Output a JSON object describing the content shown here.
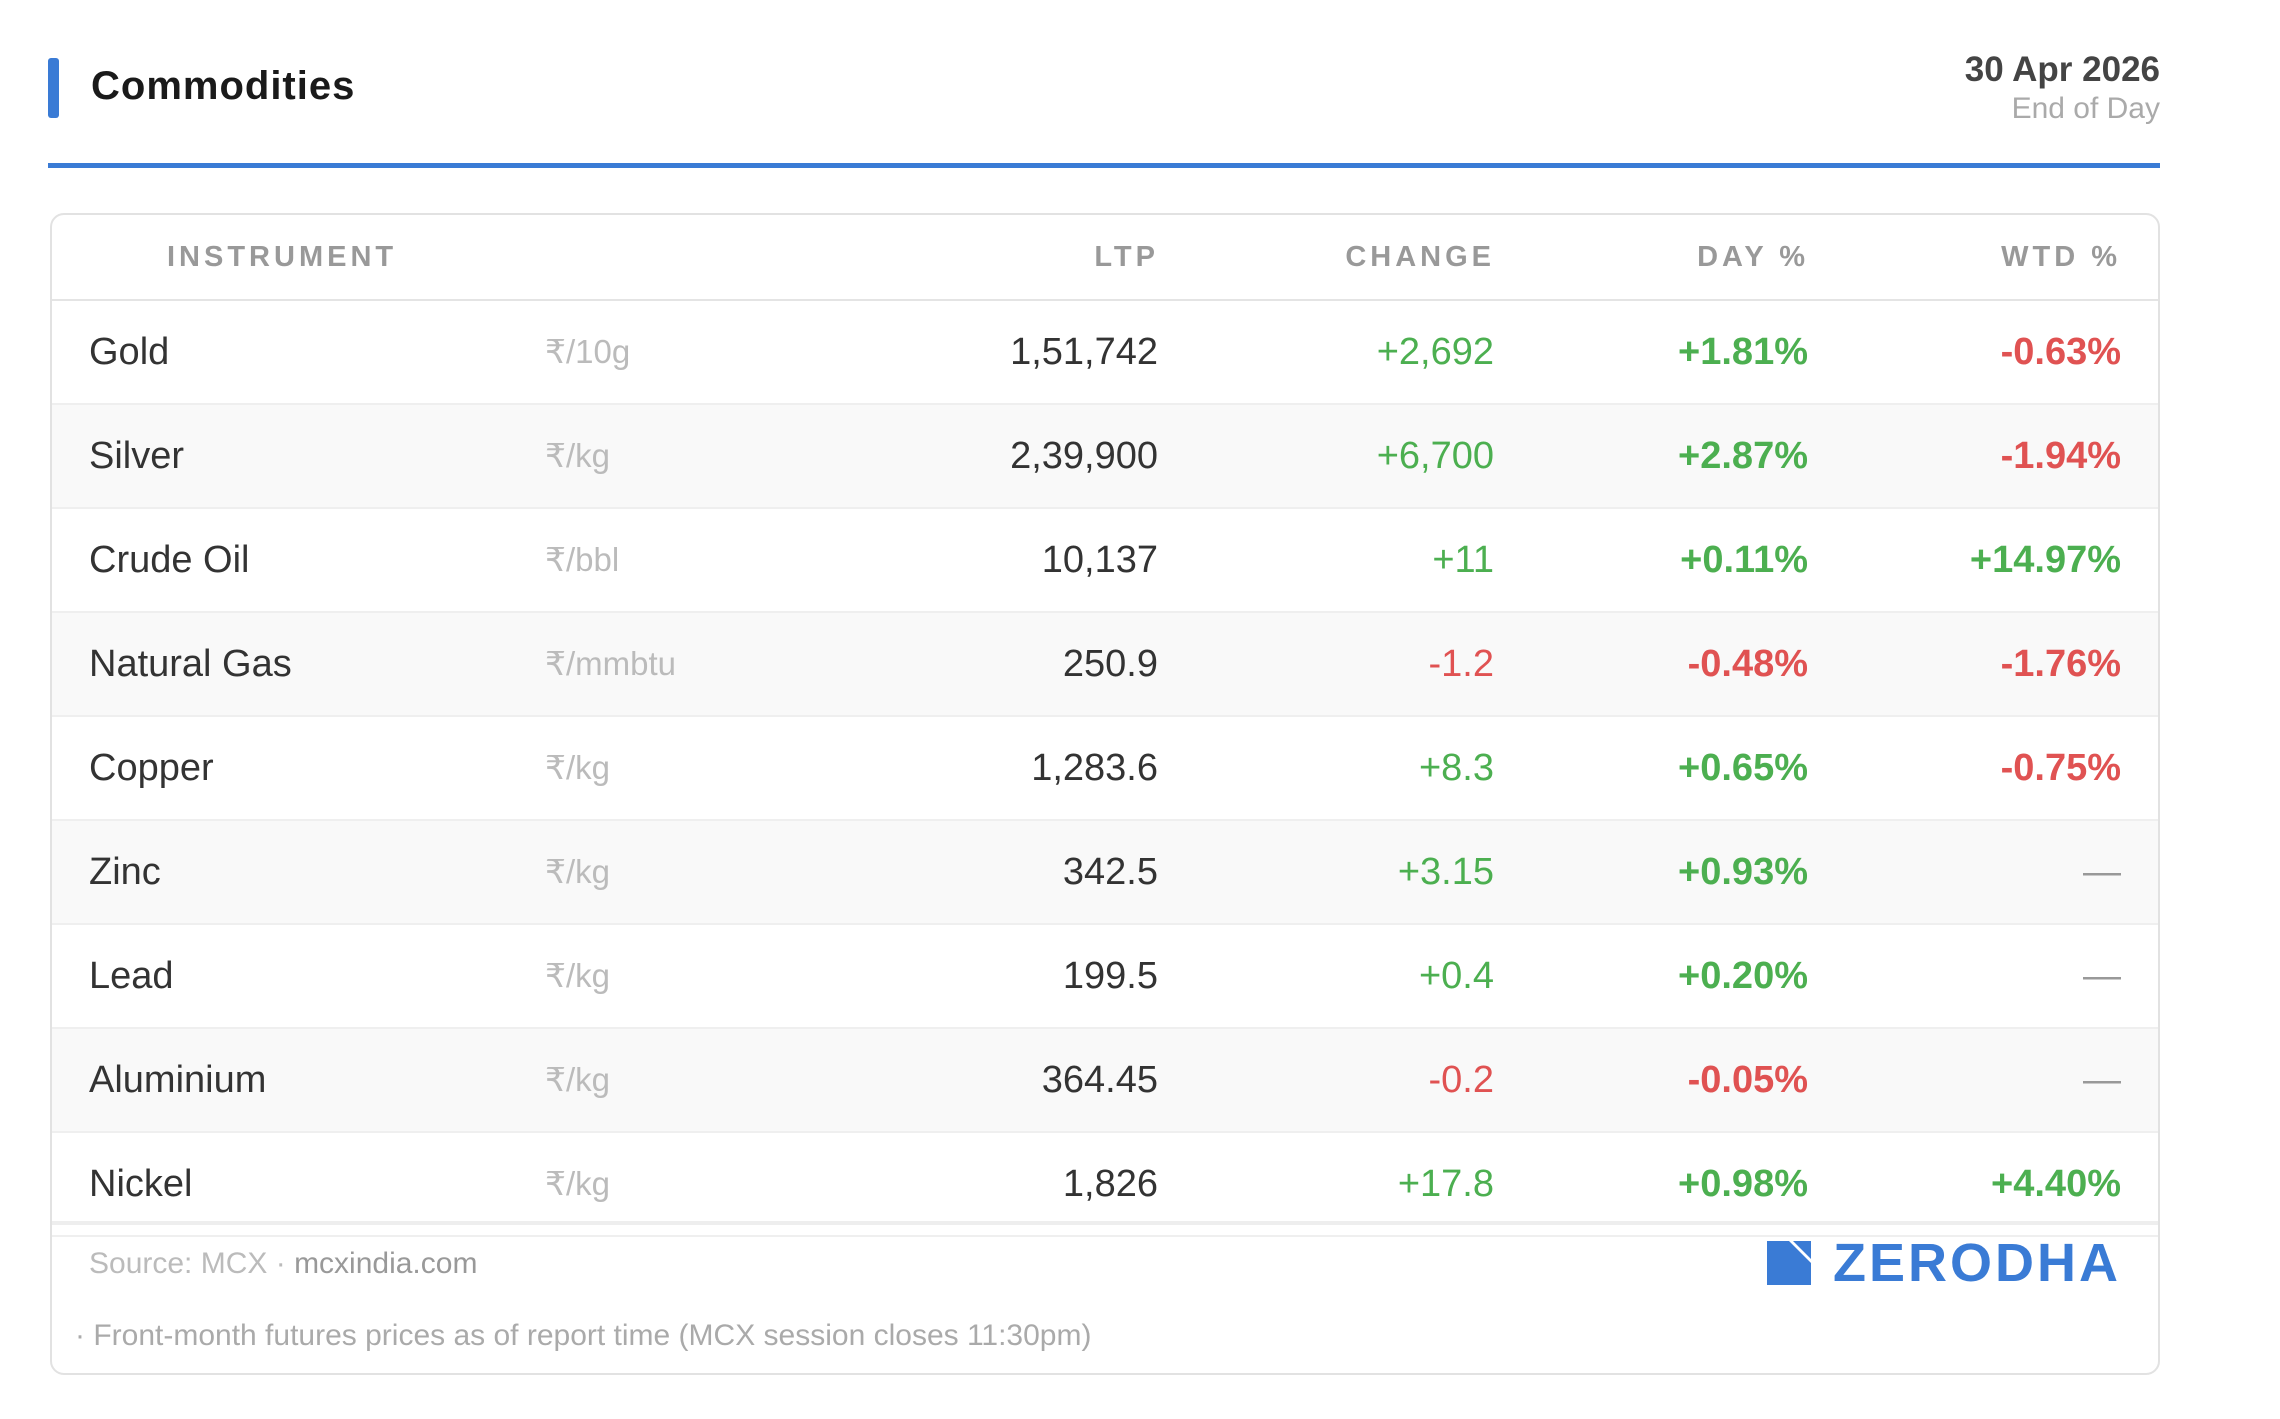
{
  "header": {
    "title": "Commodities",
    "date": "30 Apr 2026",
    "subtitle": "End of Day",
    "accent_color": "#3a7bd5"
  },
  "table": {
    "columns": {
      "instrument": "INSTRUMENT",
      "ltp": "LTP",
      "change": "CHANGE",
      "day": "DAY %",
      "wtd": "WTD %"
    },
    "rows": [
      {
        "name": "Gold",
        "unit": "₹/10g",
        "ltp": "1,51,742",
        "change": "+2,692",
        "day": "+1.81%",
        "wtd": "-0.63%"
      },
      {
        "name": "Silver",
        "unit": "₹/kg",
        "ltp": "2,39,900",
        "change": "+6,700",
        "day": "+2.87%",
        "wtd": "-1.94%"
      },
      {
        "name": "Crude Oil",
        "unit": "₹/bbl",
        "ltp": "10,137",
        "change": "+11",
        "day": "+0.11%",
        "wtd": "+14.97%"
      },
      {
        "name": "Natural Gas",
        "unit": "₹/mmbtu",
        "ltp": "250.9",
        "change": "-1.2",
        "day": "-0.48%",
        "wtd": "-1.76%"
      },
      {
        "name": "Copper",
        "unit": "₹/kg",
        "ltp": "1,283.6",
        "change": "+8.3",
        "day": "+0.65%",
        "wtd": "-0.75%"
      },
      {
        "name": "Zinc",
        "unit": "₹/kg",
        "ltp": "342.5",
        "change": "+3.15",
        "day": "+0.93%",
        "wtd": "—"
      },
      {
        "name": "Lead",
        "unit": "₹/kg",
        "ltp": "199.5",
        "change": "+0.4",
        "day": "+0.20%",
        "wtd": "—"
      },
      {
        "name": "Aluminium",
        "unit": "₹/kg",
        "ltp": "364.45",
        "change": "-0.2",
        "day": "-0.05%",
        "wtd": "—"
      },
      {
        "name": "Nickel",
        "unit": "₹/kg",
        "ltp": "1,826",
        "change": "+17.8",
        "day": "+0.98%",
        "wtd": "+4.40%"
      }
    ]
  },
  "footer": {
    "source_label": "Source: MCX · ",
    "source_link": "mcxindia.com",
    "note": "· Front-month futures prices as of report time (MCX session closes 11:30pm)",
    "brand": "ZERODHA",
    "brand_icon": "zerodha-logo-icon"
  },
  "colors": {
    "positive": "#4caf50",
    "negative": "#e05252",
    "brand": "#3a7bd5"
  }
}
